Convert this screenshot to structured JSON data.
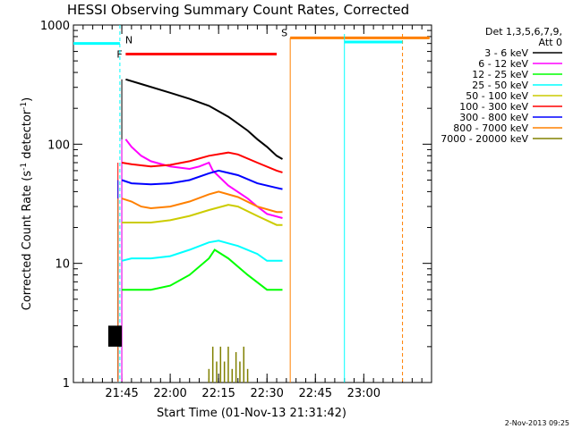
{
  "chart_data": {
    "type": "line",
    "title": "HESSI Observing Summary Count Rates, Corrected",
    "xlabel": "Start Time (01-Nov-13 21:31:42)",
    "ylabel_main": "Corrected Count Rate (s",
    "ylabel_sup1": "-1",
    "ylabel_mid": " detector",
    "ylabel_sup2": "-1",
    "ylabel_end": ")",
    "yscale": "log",
    "ylim": [
      1,
      1000
    ],
    "xlim_minutes": [
      21.5,
      23.35
    ],
    "x_ticks": [
      {
        "label": "21:45",
        "value": 21.75
      },
      {
        "label": "22:00",
        "value": 22.0
      },
      {
        "label": "22:15",
        "value": 22.25
      },
      {
        "label": "22:30",
        "value": 22.5
      },
      {
        "label": "22:45",
        "value": 22.75
      },
      {
        "label": "23:00",
        "value": 23.0
      }
    ],
    "y_ticks": [
      {
        "label": "1",
        "value": 1
      },
      {
        "label": "10",
        "value": 10
      },
      {
        "label": "100",
        "value": 100
      },
      {
        "label": "1000",
        "value": 1000
      }
    ],
    "legend_header": [
      "Det 1,3,5,6,7,9,",
      "Att 0"
    ],
    "series": [
      {
        "name": "3 - 6 keV",
        "color": "#000000",
        "points": [
          [
            21.77,
            350
          ],
          [
            21.85,
            320
          ],
          [
            22.0,
            270
          ],
          [
            22.1,
            240
          ],
          [
            22.2,
            210
          ],
          [
            22.3,
            170
          ],
          [
            22.4,
            130
          ],
          [
            22.45,
            110
          ],
          [
            22.5,
            95
          ],
          [
            22.55,
            80
          ],
          [
            22.58,
            75
          ]
        ]
      },
      {
        "name": "6 - 12 keV",
        "color": "#ff00ff",
        "points": [
          [
            21.77,
            110
          ],
          [
            21.8,
            95
          ],
          [
            21.85,
            80
          ],
          [
            21.9,
            72
          ],
          [
            22.0,
            65
          ],
          [
            22.1,
            62
          ],
          [
            22.15,
            65
          ],
          [
            22.2,
            70
          ],
          [
            22.22,
            60
          ],
          [
            22.3,
            45
          ],
          [
            22.4,
            35
          ],
          [
            22.45,
            30
          ],
          [
            22.5,
            26
          ],
          [
            22.58,
            24
          ]
        ]
      },
      {
        "name": "12 - 25 keV",
        "color": "#00ff00",
        "points": [
          [
            21.75,
            6
          ],
          [
            21.8,
            6
          ],
          [
            21.9,
            6
          ],
          [
            22.0,
            6.5
          ],
          [
            22.1,
            8
          ],
          [
            22.2,
            11
          ],
          [
            22.23,
            13
          ],
          [
            22.3,
            11
          ],
          [
            22.4,
            8
          ],
          [
            22.5,
            6
          ],
          [
            22.58,
            6
          ]
        ]
      },
      {
        "name": "25 - 50 keV",
        "color": "#00ffff",
        "points": [
          [
            21.75,
            10.5
          ],
          [
            21.8,
            11
          ],
          [
            21.9,
            11
          ],
          [
            22.0,
            11.5
          ],
          [
            22.1,
            13
          ],
          [
            22.2,
            15
          ],
          [
            22.25,
            15.5
          ],
          [
            22.35,
            14
          ],
          [
            22.45,
            12
          ],
          [
            22.5,
            10.5
          ],
          [
            22.58,
            10.5
          ]
        ]
      },
      {
        "name": "50 - 100 keV",
        "color": "#cccc00",
        "points": [
          [
            21.75,
            22
          ],
          [
            21.8,
            22
          ],
          [
            21.9,
            22
          ],
          [
            22.0,
            23
          ],
          [
            22.1,
            25
          ],
          [
            22.2,
            28
          ],
          [
            22.3,
            31
          ],
          [
            22.35,
            30
          ],
          [
            22.45,
            25
          ],
          [
            22.55,
            21
          ],
          [
            22.58,
            21
          ]
        ]
      },
      {
        "name": "100 - 300 keV",
        "color": "#ff0000",
        "points": [
          [
            21.75,
            70
          ],
          [
            21.8,
            68
          ],
          [
            21.9,
            65
          ],
          [
            22.0,
            67
          ],
          [
            22.1,
            72
          ],
          [
            22.2,
            80
          ],
          [
            22.3,
            85
          ],
          [
            22.35,
            82
          ],
          [
            22.45,
            70
          ],
          [
            22.55,
            60
          ],
          [
            22.58,
            58
          ]
        ]
      },
      {
        "name": "300 - 800 keV",
        "color": "#0000ff",
        "points": [
          [
            21.75,
            50
          ],
          [
            21.8,
            47
          ],
          [
            21.9,
            46
          ],
          [
            22.0,
            47
          ],
          [
            22.1,
            50
          ],
          [
            22.2,
            57
          ],
          [
            22.25,
            60
          ],
          [
            22.35,
            55
          ],
          [
            22.45,
            47
          ],
          [
            22.55,
            43
          ],
          [
            22.58,
            42
          ]
        ]
      },
      {
        "name": "800 - 7000 keV",
        "color": "#ff8000",
        "points": [
          [
            21.75,
            35
          ],
          [
            21.8,
            33
          ],
          [
            21.85,
            30
          ],
          [
            21.9,
            29
          ],
          [
            22.0,
            30
          ],
          [
            22.1,
            33
          ],
          [
            22.2,
            38
          ],
          [
            22.25,
            40
          ],
          [
            22.35,
            36
          ],
          [
            22.45,
            30
          ],
          [
            22.55,
            27
          ],
          [
            22.58,
            27
          ]
        ]
      },
      {
        "name": "7000 - 20000 keV",
        "color": "#808000",
        "points": [
          [
            22.2,
            1.3
          ],
          [
            22.22,
            2
          ],
          [
            22.24,
            1.5
          ],
          [
            22.26,
            2
          ],
          [
            22.28,
            1.5
          ],
          [
            22.3,
            2
          ],
          [
            22.32,
            1.3
          ],
          [
            22.34,
            1.8
          ],
          [
            22.36,
            1.5
          ],
          [
            22.38,
            2
          ],
          [
            22.4,
            1.3
          ]
        ]
      }
    ],
    "flags": [
      {
        "label": "N",
        "color": "#00ffff",
        "line_y": 700,
        "x_start": 21.5,
        "x_end": 21.74
      },
      {
        "label": "F",
        "color": "#ff0000",
        "line_y": 570,
        "x_start": 21.77,
        "x_end": 22.55
      },
      {
        "label": "S",
        "color": "#ff8000",
        "line_y": 780,
        "x_start": 22.62,
        "x_end": 23.34
      }
    ],
    "footer_date": "2-Nov-2013 09:25"
  }
}
